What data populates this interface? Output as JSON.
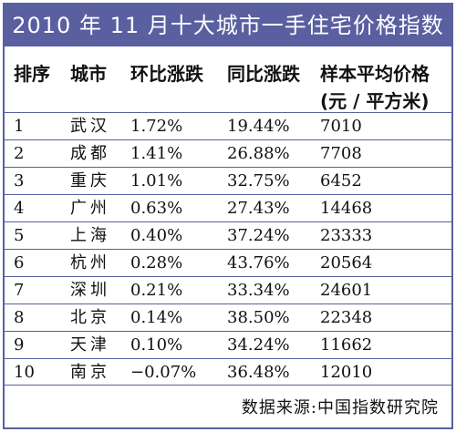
{
  "title": "2010 年 11 月十大城市一手住宅价格指数",
  "headers": {
    "rank": "排序",
    "city": "城市",
    "mom": "环比涨跌",
    "yoy": "同比涨跌",
    "price_line1": "样本平均价格",
    "price_line2": "(元 / 平方米)"
  },
  "rows": [
    {
      "rank": "1",
      "city": "武汉",
      "mom": "1.72%",
      "yoy": "19.44%",
      "price": "7010"
    },
    {
      "rank": "2",
      "city": "成都",
      "mom": "1.41%",
      "yoy": "26.88%",
      "price": "7708"
    },
    {
      "rank": "3",
      "city": "重庆",
      "mom": "1.01%",
      "yoy": "32.75%",
      "price": "6452"
    },
    {
      "rank": "4",
      "city": "广州",
      "mom": "0.63%",
      "yoy": "27.43%",
      "price": "14468"
    },
    {
      "rank": "5",
      "city": "上海",
      "mom": "0.40%",
      "yoy": "37.24%",
      "price": "23333"
    },
    {
      "rank": "6",
      "city": "杭州",
      "mom": "0.28%",
      "yoy": "43.76%",
      "price": "20564"
    },
    {
      "rank": "7",
      "city": "深圳",
      "mom": "0.21%",
      "yoy": "33.34%",
      "price": "24601"
    },
    {
      "rank": "8",
      "city": "北京",
      "mom": "0.14%",
      "yoy": "38.50%",
      "price": "22348"
    },
    {
      "rank": "9",
      "city": "天津",
      "mom": "0.10%",
      "yoy": "34.24%",
      "price": "11662"
    },
    {
      "rank": "10",
      "city": "南京",
      "mom": "−0.07%",
      "yoy": "36.48%",
      "price": "12010"
    }
  ],
  "source": "数据来源:中国指数研究院",
  "colors": {
    "accent": "#5a5fa0",
    "text": "#111111",
    "background": "#ffffff"
  }
}
